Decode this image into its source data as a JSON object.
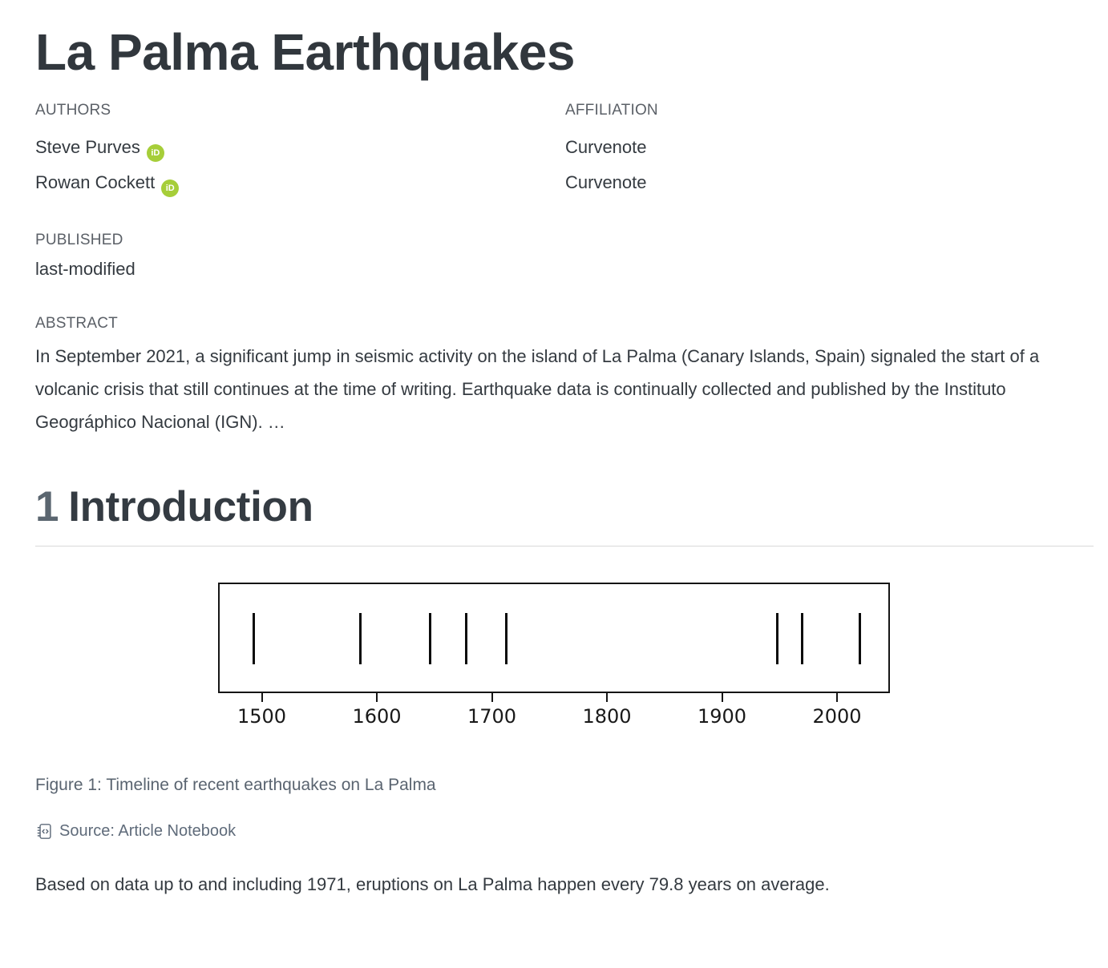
{
  "page": {
    "title": "La Palma Earthquakes",
    "meta": {
      "authors_label": "AUTHORS",
      "affiliation_label": "AFFILIATION",
      "authors": [
        {
          "name": "Steve Purves",
          "affiliation": "Curvenote"
        },
        {
          "name": "Rowan Cockett",
          "affiliation": "Curvenote"
        }
      ],
      "published_label": "PUBLISHED",
      "published_value": "last-modified",
      "abstract_label": "ABSTRACT",
      "abstract_text": "In September 2021, a significant jump in seismic activity on the island of La Palma (Canary Islands, Spain) signaled the start of a volcanic crisis that still continues at the time of writing. Earthquake data is continually collected and published by the Instituto Geográphico Nacional (IGN). …"
    },
    "section": {
      "number": "1",
      "title": "Introduction"
    },
    "figure": {
      "caption": "Figure 1: Timeline of recent earthquakes on La Palma",
      "source_label": "Source: Article Notebook"
    },
    "closing_text": "Based on data up to and including 1971, eruptions on La Palma happen every 79.8 years on average."
  },
  "icons": {
    "orcid_text": "iD"
  },
  "colors": {
    "orcid_green": "#a6ce39",
    "text_dark": "#343a40",
    "label_gray": "#5b6067",
    "caption_gray": "#5a6470",
    "plot_line": "#0b0b0b"
  },
  "chart_data": {
    "type": "scatter",
    "title": "",
    "xlabel": "",
    "ylabel": "",
    "description": "Timeline of recent earthquakes (eruptions) on La Palma, shown as vertical line markers",
    "marker": "vertical-line",
    "x": [
      1492,
      1585,
      1646,
      1677,
      1712,
      1949,
      1971,
      2021
    ],
    "xticks": [
      1500,
      1600,
      1700,
      1800,
      1900,
      2000
    ],
    "xlim": [
      1462,
      2046
    ],
    "grid": false,
    "yticks": []
  }
}
